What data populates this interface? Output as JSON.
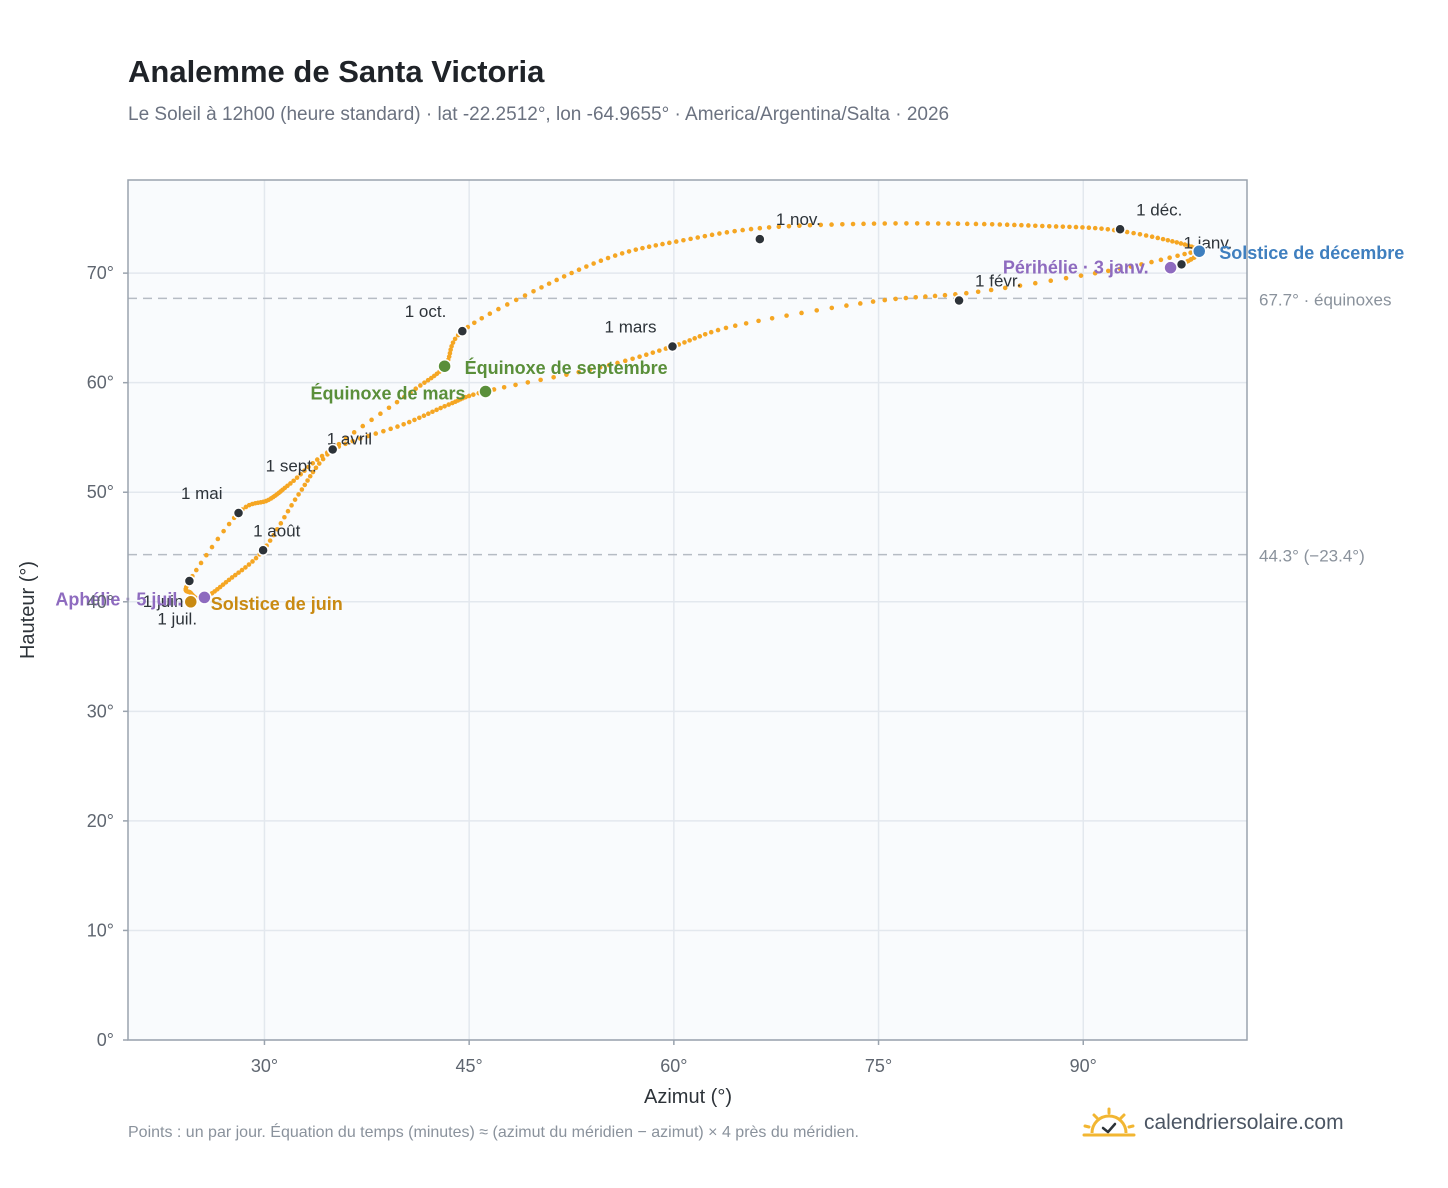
{
  "header": {
    "title": "Analemme de Santa Victoria",
    "subtitle": "Le Soleil à 12h00 (heure standard) · lat -22.2512°, lon -64.9655° · America/Argentina/Salta · 2026"
  },
  "footer": {
    "note": "Points : un par jour. Équation du temps (minutes) ≈ (azimut du méridien − azimut) × 4 près du méridien.",
    "brand": "calendriersolaire.com",
    "brand_icon": "sun-check-icon"
  },
  "colors": {
    "curve": "#f5a623",
    "month_marker": "#2d3339",
    "equinox": "#5a8f3a",
    "perihelion_aphelion": "#8e6bbf",
    "june_solstice": "#c98a12",
    "december_solstice": "#3f7fbf",
    "plot_bg": "#f9fbfd",
    "grid": "#e3e8ee",
    "axis": "#9aa3ae",
    "reference_line": "#b6bcc4"
  },
  "chart_data": {
    "type": "scatter",
    "xlabel": "Azimut (°)",
    "ylabel": "Hauteur (°)",
    "xlim": [
      20,
      102
    ],
    "ylim": [
      0,
      78.5
    ],
    "x_ticks": [
      30,
      45,
      60,
      75,
      90
    ],
    "y_ticks": [
      0,
      10,
      20,
      30,
      40,
      50,
      60,
      70
    ],
    "x_tick_labels": [
      "30°",
      "45°",
      "60°",
      "75°",
      "90°"
    ],
    "y_tick_labels": [
      "0°",
      "10°",
      "20°",
      "30°",
      "40°",
      "50°",
      "60°",
      "70°"
    ],
    "grid": true,
    "series": [
      {
        "points_per": "day",
        "x": [
          97.2,
          98.5,
          92.7,
          82.3,
          74.6,
          64.5,
          59.9,
          54.6,
          46.2,
          43.5,
          40.2,
          35.0,
          31.9,
          30.3,
          28.1,
          24.5,
          24.6,
          25.5,
          27.4,
          29.9,
          32.5,
          35.0,
          40.7,
          43.2,
          44.5,
          50.3,
          55.7,
          60.7,
          66.3,
          73.9,
          81.5,
          87.0,
          91.8,
          96.2,
          98.5,
          97.2
        ],
        "y": [
          70.8,
          72.0,
          70.4,
          68.3,
          67.4,
          65.2,
          63.3,
          61.4,
          59.2,
          58.0,
          56.2,
          53.9,
          50.8,
          49.3,
          48.1,
          41.9,
          40.8,
          40.3,
          42.0,
          44.7,
          49.8,
          53.9,
          59.1,
          61.5,
          64.7,
          68.7,
          71.6,
          73.0,
          74.1,
          74.5,
          74.5,
          74.3,
          74.0,
          73.0,
          72.0,
          70.8
        ]
      }
    ],
    "month_markers": [
      {
        "label": "1 janv.",
        "x": 97.2,
        "y": 70.8
      },
      {
        "label": "1 févr.",
        "x": 80.9,
        "y": 67.5
      },
      {
        "label": "1 mars",
        "x": 59.9,
        "y": 63.3
      },
      {
        "label": "1 avril",
        "x": 35.0,
        "y": 53.9
      },
      {
        "label": "1 mai",
        "x": 28.1,
        "y": 48.1
      },
      {
        "label": "1 juin",
        "x": 24.5,
        "y": 41.9
      },
      {
        "label": "1 juil.",
        "x": 25.5,
        "y": 40.3
      },
      {
        "label": "1 août",
        "x": 29.9,
        "y": 44.7
      },
      {
        "label": "1 sept.",
        "x": 35.0,
        "y": 53.9
      },
      {
        "label": "1 oct.",
        "x": 44.5,
        "y": 64.7
      },
      {
        "label": "1 nov.",
        "x": 66.3,
        "y": 73.1
      },
      {
        "label": "1 déc.",
        "x": 92.7,
        "y": 74.0
      }
    ],
    "events": [
      {
        "label": "Solstice de décembre",
        "x": 98.5,
        "y": 72.0,
        "kind": "december_solstice"
      },
      {
        "label": "Périhélie · 3 janv.",
        "x": 96.4,
        "y": 70.5,
        "kind": "perihelion_aphelion"
      },
      {
        "label": "Équinoxe de mars",
        "x": 46.2,
        "y": 59.2,
        "kind": "equinox"
      },
      {
        "label": "Équinoxe de septembre",
        "x": 43.2,
        "y": 61.5,
        "kind": "equinox"
      },
      {
        "label": "Solstice de juin",
        "x": 24.6,
        "y": 40.0,
        "kind": "june_solstice"
      },
      {
        "label": "Aphélie · 5 juil.",
        "x": 25.6,
        "y": 40.4,
        "kind": "perihelion_aphelion"
      }
    ],
    "reference_lines": [
      {
        "y": 67.7,
        "label": "67.7° · équinoxes"
      },
      {
        "y": 44.3,
        "label": "44.3° (−23.4°)"
      }
    ]
  }
}
